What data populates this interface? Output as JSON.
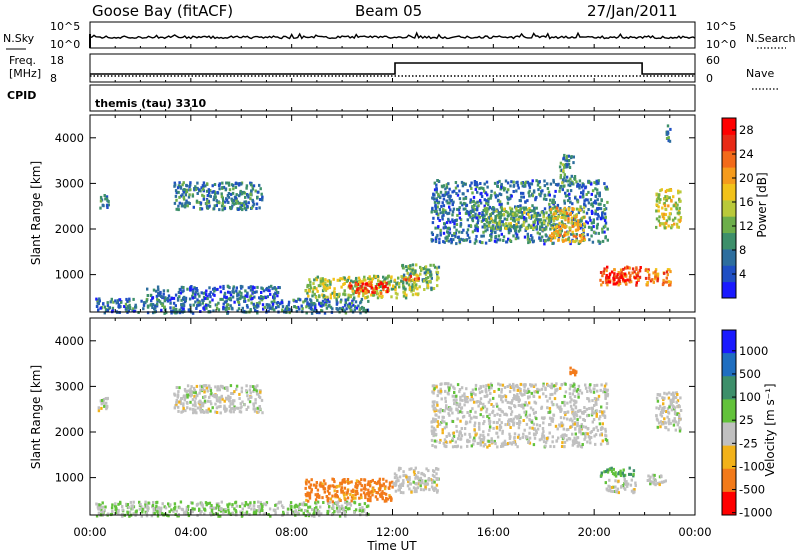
{
  "header": {
    "station": "Goose Bay (fitACF)",
    "beam": "Beam 05",
    "date": "27/Jan/2011"
  },
  "aux": {
    "nsky_label": "N.Sky",
    "nsearch_label": "N.Search",
    "noise_ticks": [
      "10^5",
      "10^0"
    ],
    "freq_label_1": "Freq.",
    "freq_label_2": "[MHz]",
    "freq_ticks": [
      "18",
      "8"
    ],
    "nave_label": "Nave",
    "nave_ticks": [
      "60",
      "0"
    ],
    "cpid_label": "CPID",
    "cpid_value": "themis (tau) 3310"
  },
  "chart_data": [
    {
      "type": "heatmap",
      "panel": "power",
      "ylabel": "Slant Range [km]",
      "xlabel": "Time UT",
      "x_ticks": [
        "00:00",
        "04:00",
        "08:00",
        "12:00",
        "16:00",
        "20:00",
        "00:00"
      ],
      "x_range_hours": [
        0,
        24
      ],
      "ylim": [
        180,
        4500
      ],
      "y_ticks": [
        1000,
        2000,
        3000,
        4000
      ],
      "colorbar": {
        "label": "Power [dB]",
        "ticks": [
          4,
          8,
          12,
          16,
          20,
          24,
          28
        ],
        "range": [
          0,
          30
        ],
        "colors": [
          "#1a1aff",
          "#1f4fc4",
          "#2d6e9e",
          "#3d8f6a",
          "#6cae4a",
          "#b9c93a",
          "#f2c21a",
          "#f59b1c",
          "#f26a1a",
          "#e82a16",
          "#ff0000"
        ]
      },
      "regions": [
        {
          "t0": 0.3,
          "t1": 0.7,
          "r0": 2450,
          "r1": 2800,
          "v": 8
        },
        {
          "t0": 0.2,
          "t1": 11.0,
          "r0": 180,
          "r1": 500,
          "v": 7
        },
        {
          "t0": 3.3,
          "t1": 6.8,
          "r0": 2450,
          "r1": 3050,
          "v": 8
        },
        {
          "t0": 2.2,
          "t1": 7.5,
          "r0": 500,
          "r1": 780,
          "v": 6
        },
        {
          "t0": 8.5,
          "t1": 13.0,
          "r0": 520,
          "r1": 1000,
          "v": 14
        },
        {
          "t0": 10.2,
          "t1": 11.8,
          "r0": 620,
          "r1": 860,
          "v": 26
        },
        {
          "t0": 12.3,
          "t1": 13.8,
          "r0": 700,
          "r1": 1250,
          "v": 12
        },
        {
          "t0": 12.4,
          "t1": 13.0,
          "r0": 900,
          "r1": 1000,
          "v": 22
        },
        {
          "t0": 13.5,
          "t1": 20.5,
          "r0": 1700,
          "r1": 3100,
          "v": 7
        },
        {
          "t0": 15.6,
          "t1": 18.5,
          "r0": 2000,
          "r1": 2500,
          "v": 12
        },
        {
          "t0": 18.2,
          "t1": 19.6,
          "r0": 1750,
          "r1": 2500,
          "v": 18
        },
        {
          "t0": 18.6,
          "t1": 19.2,
          "r0": 3000,
          "r1": 3650,
          "v": 9
        },
        {
          "t0": 20.2,
          "t1": 21.8,
          "r0": 800,
          "r1": 1200,
          "v": 24
        },
        {
          "t0": 20.4,
          "t1": 21.4,
          "r0": 850,
          "r1": 1050,
          "v": 28
        },
        {
          "t0": 22.0,
          "t1": 23.0,
          "r0": 800,
          "r1": 1150,
          "v": 22
        },
        {
          "t0": 22.4,
          "t1": 23.4,
          "r0": 2050,
          "r1": 2900,
          "v": 16
        },
        {
          "t0": 22.8,
          "t1": 23.0,
          "r0": 3900,
          "r1": 4300,
          "v": 8
        }
      ]
    },
    {
      "type": "heatmap",
      "panel": "velocity",
      "ylabel": "Slant Range [km]",
      "xlabel": "Time UT",
      "x_ticks": [
        "00:00",
        "04:00",
        "08:00",
        "12:00",
        "16:00",
        "20:00",
        "00:00"
      ],
      "x_range_hours": [
        0,
        24
      ],
      "ylim": [
        180,
        4500
      ],
      "y_ticks": [
        1000,
        2000,
        3000,
        4000
      ],
      "colorbar": {
        "label": "Velocity [m s⁻¹]",
        "ticks": [
          "1000",
          "500",
          "100",
          "25",
          "-25",
          "-100",
          "-500",
          "-1000"
        ],
        "colors": [
          "#1a1aff",
          "#1f6ec0",
          "#3d8f6a",
          "#62c23a",
          "#c0c0c0",
          "#f2b21a",
          "#f27a1a",
          "#ff0000"
        ]
      },
      "regions": [
        {
          "t0": 0.2,
          "t1": 11.0,
          "r0": 180,
          "r1": 500,
          "v": 25
        },
        {
          "t0": 0.3,
          "t1": 0.7,
          "r0": 2450,
          "r1": 2800,
          "v": 0
        },
        {
          "t0": 3.3,
          "t1": 6.8,
          "r0": 2450,
          "r1": 3050,
          "v": 0
        },
        {
          "t0": 8.5,
          "t1": 12.0,
          "r0": 500,
          "r1": 1000,
          "v": -120
        },
        {
          "t0": 12.0,
          "t1": 13.8,
          "r0": 700,
          "r1": 1250,
          "v": 0
        },
        {
          "t0": 13.5,
          "t1": 20.5,
          "r0": 1700,
          "r1": 3100,
          "v": 0
        },
        {
          "t0": 19.0,
          "t1": 19.3,
          "r0": 3150,
          "r1": 3450,
          "v": -300
        },
        {
          "t0": 20.2,
          "t1": 21.6,
          "r0": 1050,
          "r1": 1250,
          "v": 60
        },
        {
          "t0": 20.4,
          "t1": 21.6,
          "r0": 700,
          "r1": 1000,
          "v": 0
        },
        {
          "t0": 22.0,
          "t1": 22.8,
          "r0": 850,
          "r1": 1100,
          "v": 0
        },
        {
          "t0": 22.4,
          "t1": 23.4,
          "r0": 2050,
          "r1": 2900,
          "v": 0
        }
      ]
    }
  ]
}
